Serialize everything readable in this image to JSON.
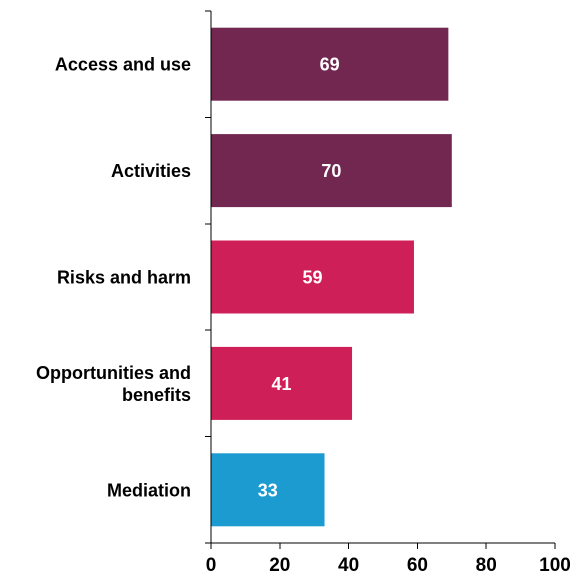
{
  "chart_data": {
    "type": "bar",
    "orientation": "horizontal",
    "categories": [
      "Access and use",
      "Activities",
      "Risks and harm",
      "Opportunities and benefits",
      "Mediation"
    ],
    "category_lines": [
      [
        "Access and use"
      ],
      [
        "Activities"
      ],
      [
        "Risks and harm"
      ],
      [
        "Opportunities and",
        "benefits"
      ],
      [
        "Mediation"
      ]
    ],
    "values": [
      69,
      70,
      59,
      41,
      33
    ],
    "data_labels": [
      "69",
      "70",
      "59",
      "41",
      "33"
    ],
    "bar_colors": [
      "#722750",
      "#722750",
      "#cf1f58",
      "#cf1f58",
      "#1b9bd0"
    ],
    "xlim": [
      0,
      100
    ],
    "x_ticks": [
      0,
      20,
      40,
      60,
      80,
      100
    ],
    "x_tick_labels": [
      "0",
      "20",
      "40",
      "60",
      "80",
      "100"
    ],
    "title": "",
    "xlabel": "",
    "ylabel": "",
    "grid": false,
    "legend": "none"
  }
}
